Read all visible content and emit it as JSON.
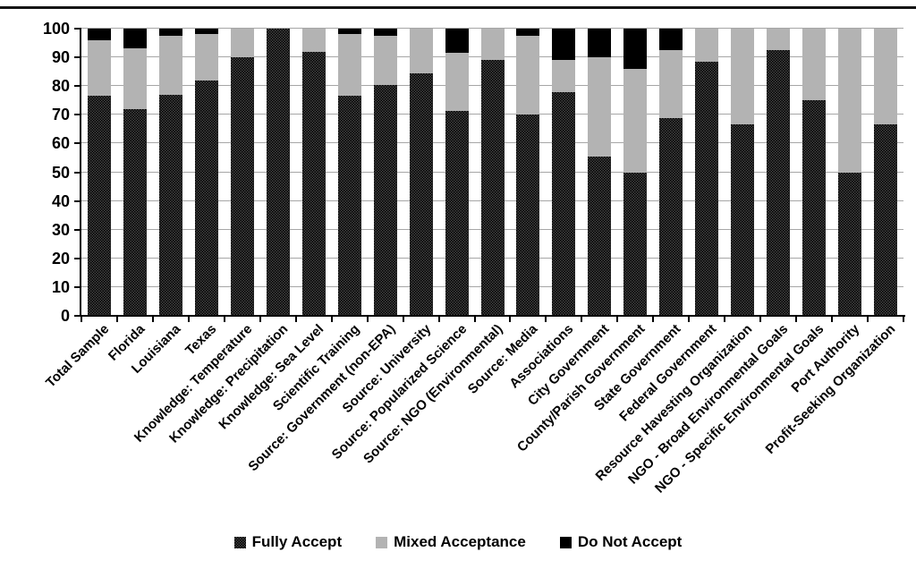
{
  "figure": {
    "type": "stacked-bar-figure",
    "background": "#ffffff",
    "top_rule_color": "#151515"
  },
  "chart_data": {
    "type": "bar",
    "stacked": true,
    "orientation": "vertical",
    "title": "",
    "xlabel": "",
    "ylabel": "",
    "ylim": [
      0,
      100
    ],
    "yticks": [
      0,
      10,
      20,
      30,
      40,
      50,
      60,
      70,
      80,
      90,
      100
    ],
    "grid": true,
    "legend_position": "bottom",
    "categories": [
      "Total Sample",
      "Florida",
      "Louisiana",
      "Texas",
      "Knowledge: Temperature",
      "Knowledge: Precipitation",
      "Knowledge: Sea Level",
      "Scientific Training",
      "Source: Government (non-EPA)",
      "Source: University",
      "Source: Popularized Science",
      "Source: NGO (Environmental)",
      "Source: Media",
      "Associations",
      "City Government",
      "County/Parish Government",
      "State Government",
      "Federal Government",
      "Resource Havesting Organization",
      "NGO - Broad Environmental Goals",
      "NGO - Specific Environmental Goals",
      "Port Authority",
      "Profit-Seeking Organization"
    ],
    "series": [
      {
        "name": "Fully Accept",
        "style": "black-dot-pattern",
        "values": [
          76.5,
          72,
          77,
          82,
          90,
          100,
          92,
          76.5,
          80.5,
          84.5,
          71.5,
          89,
          70,
          78,
          55.5,
          50,
          69,
          88.5,
          66.7,
          92.5,
          75,
          50,
          66.7
        ]
      },
      {
        "name": "Mixed Acceptance",
        "style": "solid-gray",
        "values": [
          19.5,
          21,
          20.5,
          16,
          10,
          0,
          8,
          21.5,
          17,
          15.5,
          20,
          11,
          27.5,
          11,
          34.5,
          36,
          23.5,
          11.5,
          33.3,
          7.5,
          25,
          50,
          33.3
        ]
      },
      {
        "name": "Do Not Accept",
        "style": "solid-black",
        "values": [
          4,
          7,
          2.5,
          2,
          0,
          0,
          0,
          2,
          2.5,
          0,
          8.5,
          0,
          2.5,
          11,
          10,
          14,
          7.5,
          0,
          0,
          0,
          0,
          0,
          0
        ]
      }
    ],
    "colors": {
      "fully_accept_base": "#000000",
      "fully_accept_dot": "#454545",
      "mixed_acceptance": "#b3b3b3",
      "do_not_accept": "#000000",
      "gridline": "#a6a6a6",
      "axis": "#000000"
    }
  }
}
